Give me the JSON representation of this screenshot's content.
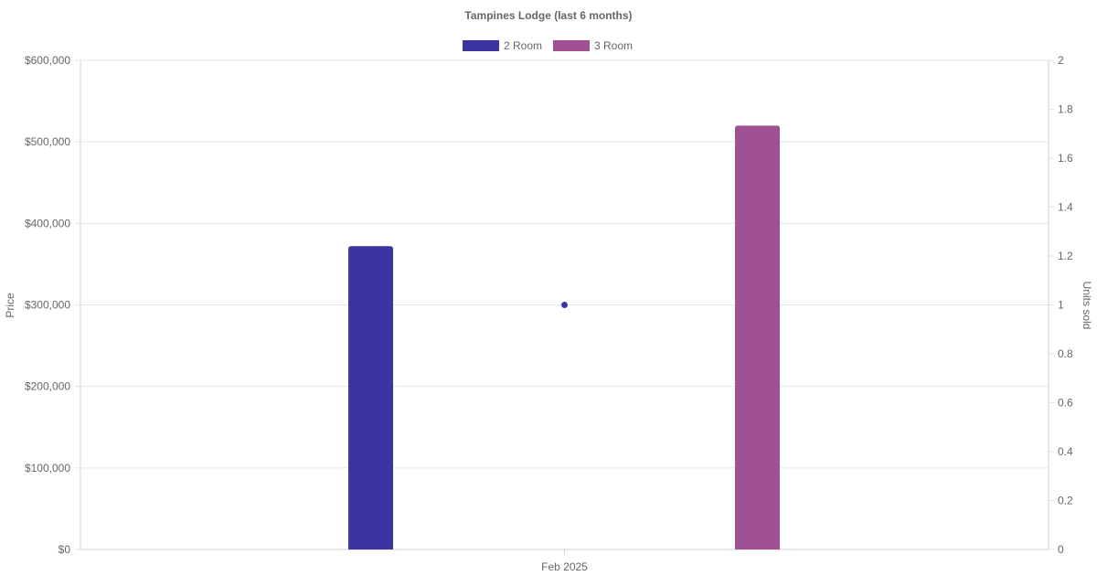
{
  "chart_data": {
    "type": "bar",
    "title": "Tampines Lodge (last 6 months)",
    "categories": [
      "Feb 2025"
    ],
    "series": [
      {
        "name": "2 Room",
        "values": [
          372000
        ],
        "color": "#3A35A1",
        "axis": "left",
        "mark": "bar"
      },
      {
        "name": "3 Room",
        "values": [
          520000
        ],
        "color": "#A05195",
        "axis": "left",
        "mark": "bar"
      },
      {
        "values": [
          1
        ],
        "color": "#3A35A1",
        "axis": "right",
        "mark": "point"
      }
    ],
    "y_left": {
      "label": "Price",
      "ylim": [
        0,
        600000
      ],
      "ticks": [
        "$0",
        "$100,000",
        "$200,000",
        "$300,000",
        "$400,000",
        "$500,000",
        "$600,000"
      ]
    },
    "y_right": {
      "label": "Units sold",
      "ylim": [
        0,
        2
      ],
      "ticks": [
        "0",
        "0.2",
        "0.4",
        "0.6",
        "0.8",
        "1",
        "1.2",
        "1.4",
        "1.6",
        "1.8",
        "2"
      ]
    },
    "legend_position": "top-center",
    "grid": true,
    "grid_color": "#e5e5e5",
    "axis_color": "#d0d0d0",
    "text_color": "#666666"
  }
}
